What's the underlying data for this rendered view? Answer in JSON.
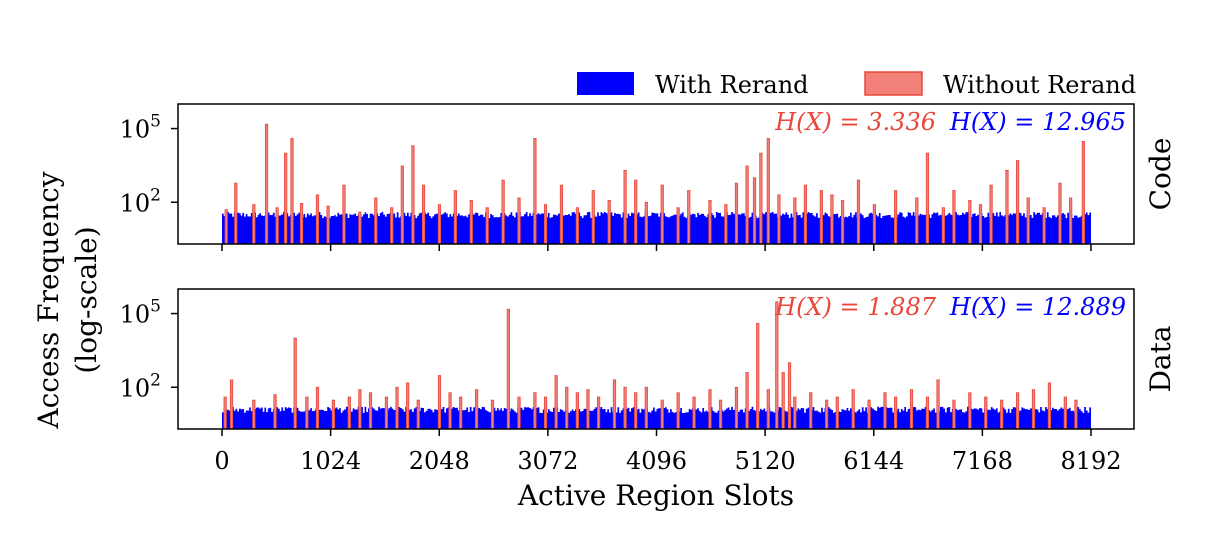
{
  "colors": {
    "with_rerand": "#0000ff",
    "without_rerand": "#e8473b",
    "without_rerand_fill": "#f08078"
  },
  "chart_data": {
    "type": "bar",
    "yscale": "log",
    "xlabel": "Active Region Slots",
    "ylabel_line1": "Access Frequency",
    "ylabel_line2": "(log-scale)",
    "xlim": [
      0,
      8192
    ],
    "x_ticks": [
      0,
      1024,
      2048,
      3072,
      4096,
      5120,
      6144,
      7168,
      8192
    ],
    "y_ticks": [
      {
        "value": 100000,
        "base": "10",
        "exp": "5"
      },
      {
        "value": 100,
        "base": "10",
        "exp": "2"
      }
    ],
    "ylim": [
      2,
      1000000
    ],
    "legend": {
      "placement": "top-right",
      "entries": [
        {
          "label": "With Rerand",
          "color": "#0000ff"
        },
        {
          "label": "Without Rerand",
          "color": "#f08078"
        }
      ]
    },
    "panels": [
      {
        "name": "Code",
        "baseline_with_rerand": 30,
        "entropy_without": "H(X) = 3.336",
        "entropy_with": "H(X) = 12.965",
        "spikes_without_rerand": [
          {
            "x": 40,
            "y": 50
          },
          {
            "x": 130,
            "y": 600
          },
          {
            "x": 300,
            "y": 80
          },
          {
            "x": 420,
            "y": 150000
          },
          {
            "x": 520,
            "y": 60
          },
          {
            "x": 600,
            "y": 10000
          },
          {
            "x": 660,
            "y": 40000
          },
          {
            "x": 750,
            "y": 90
          },
          {
            "x": 900,
            "y": 200
          },
          {
            "x": 1000,
            "y": 70
          },
          {
            "x": 1150,
            "y": 500
          },
          {
            "x": 1300,
            "y": 40
          },
          {
            "x": 1450,
            "y": 150
          },
          {
            "x": 1600,
            "y": 60
          },
          {
            "x": 1700,
            "y": 3000
          },
          {
            "x": 1800,
            "y": 20000
          },
          {
            "x": 1900,
            "y": 500
          },
          {
            "x": 2050,
            "y": 80
          },
          {
            "x": 2200,
            "y": 300
          },
          {
            "x": 2350,
            "y": 120
          },
          {
            "x": 2500,
            "y": 60
          },
          {
            "x": 2650,
            "y": 800
          },
          {
            "x": 2800,
            "y": 150
          },
          {
            "x": 2950,
            "y": 40000
          },
          {
            "x": 3050,
            "y": 80
          },
          {
            "x": 3200,
            "y": 500
          },
          {
            "x": 3350,
            "y": 60
          },
          {
            "x": 3500,
            "y": 300
          },
          {
            "x": 3650,
            "y": 120
          },
          {
            "x": 3800,
            "y": 2000
          },
          {
            "x": 3900,
            "y": 800
          },
          {
            "x": 4000,
            "y": 100
          },
          {
            "x": 4150,
            "y": 500
          },
          {
            "x": 4300,
            "y": 60
          },
          {
            "x": 4400,
            "y": 300
          },
          {
            "x": 4600,
            "y": 120
          },
          {
            "x": 4750,
            "y": 80
          },
          {
            "x": 4850,
            "y": 600
          },
          {
            "x": 4950,
            "y": 3000
          },
          {
            "x": 5020,
            "y": 1000
          },
          {
            "x": 5080,
            "y": 10000
          },
          {
            "x": 5150,
            "y": 40000
          },
          {
            "x": 5250,
            "y": 200
          },
          {
            "x": 5400,
            "y": 150
          },
          {
            "x": 5500,
            "y": 500
          },
          {
            "x": 5650,
            "y": 300
          },
          {
            "x": 5750,
            "y": 200
          },
          {
            "x": 5850,
            "y": 120
          },
          {
            "x": 6000,
            "y": 800
          },
          {
            "x": 6150,
            "y": 80
          },
          {
            "x": 6350,
            "y": 300
          },
          {
            "x": 6550,
            "y": 150
          },
          {
            "x": 6650,
            "y": 10000
          },
          {
            "x": 6800,
            "y": 60
          },
          {
            "x": 6900,
            "y": 300
          },
          {
            "x": 7050,
            "y": 120
          },
          {
            "x": 7150,
            "y": 80
          },
          {
            "x": 7250,
            "y": 500
          },
          {
            "x": 7400,
            "y": 2000
          },
          {
            "x": 7500,
            "y": 5000
          },
          {
            "x": 7600,
            "y": 150
          },
          {
            "x": 7750,
            "y": 60
          },
          {
            "x": 7900,
            "y": 600
          },
          {
            "x": 8000,
            "y": 150
          },
          {
            "x": 8120,
            "y": 30000
          }
        ]
      },
      {
        "name": "Data",
        "baseline_with_rerand": 12,
        "entropy_without": "H(X) = 1.887",
        "entropy_with": "H(X) = 12.889",
        "spikes_without_rerand": [
          {
            "x": 30,
            "y": 40
          },
          {
            "x": 90,
            "y": 200
          },
          {
            "x": 300,
            "y": 30
          },
          {
            "x": 500,
            "y": 50
          },
          {
            "x": 690,
            "y": 10000
          },
          {
            "x": 800,
            "y": 40
          },
          {
            "x": 900,
            "y": 100
          },
          {
            "x": 1050,
            "y": 30
          },
          {
            "x": 1200,
            "y": 40
          },
          {
            "x": 1300,
            "y": 80
          },
          {
            "x": 1400,
            "y": 60
          },
          {
            "x": 1550,
            "y": 40
          },
          {
            "x": 1650,
            "y": 100
          },
          {
            "x": 1750,
            "y": 150
          },
          {
            "x": 1850,
            "y": 30
          },
          {
            "x": 2050,
            "y": 300
          },
          {
            "x": 2150,
            "y": 60
          },
          {
            "x": 2250,
            "y": 40
          },
          {
            "x": 2400,
            "y": 80
          },
          {
            "x": 2550,
            "y": 30
          },
          {
            "x": 2700,
            "y": 150000
          },
          {
            "x": 2800,
            "y": 40
          },
          {
            "x": 2950,
            "y": 60
          },
          {
            "x": 3050,
            "y": 40
          },
          {
            "x": 3150,
            "y": 300
          },
          {
            "x": 3250,
            "y": 100
          },
          {
            "x": 3350,
            "y": 60
          },
          {
            "x": 3450,
            "y": 80
          },
          {
            "x": 3550,
            "y": 40
          },
          {
            "x": 3700,
            "y": 200
          },
          {
            "x": 3800,
            "y": 100
          },
          {
            "x": 3900,
            "y": 60
          },
          {
            "x": 4000,
            "y": 100
          },
          {
            "x": 4150,
            "y": 30
          },
          {
            "x": 4300,
            "y": 60
          },
          {
            "x": 4450,
            "y": 40
          },
          {
            "x": 4600,
            "y": 80
          },
          {
            "x": 4700,
            "y": 30
          },
          {
            "x": 4850,
            "y": 100
          },
          {
            "x": 4950,
            "y": 400
          },
          {
            "x": 5050,
            "y": 40000
          },
          {
            "x": 5150,
            "y": 80
          },
          {
            "x": 5230,
            "y": 300000
          },
          {
            "x": 5290,
            "y": 400
          },
          {
            "x": 5350,
            "y": 1000
          },
          {
            "x": 5400,
            "y": 40
          },
          {
            "x": 5550,
            "y": 60
          },
          {
            "x": 5700,
            "y": 30
          },
          {
            "x": 5800,
            "y": 40
          },
          {
            "x": 5950,
            "y": 80
          },
          {
            "x": 6100,
            "y": 30
          },
          {
            "x": 6250,
            "y": 60
          },
          {
            "x": 6350,
            "y": 40
          },
          {
            "x": 6500,
            "y": 80
          },
          {
            "x": 6650,
            "y": 40
          },
          {
            "x": 6750,
            "y": 200
          },
          {
            "x": 6900,
            "y": 30
          },
          {
            "x": 7050,
            "y": 60
          },
          {
            "x": 7200,
            "y": 40
          },
          {
            "x": 7350,
            "y": 30
          },
          {
            "x": 7500,
            "y": 60
          },
          {
            "x": 7650,
            "y": 80
          },
          {
            "x": 7800,
            "y": 150
          },
          {
            "x": 7950,
            "y": 40
          },
          {
            "x": 8050,
            "y": 30
          }
        ]
      }
    ]
  }
}
